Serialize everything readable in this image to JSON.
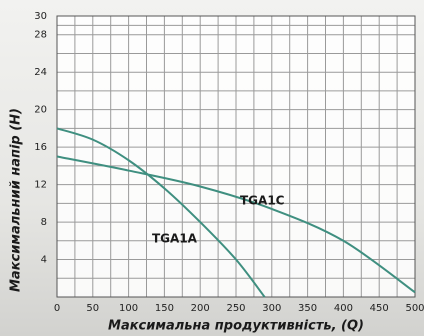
{
  "chart_data": {
    "type": "line",
    "x_label": "Максимальна продуктивність, (Q)",
    "y_label": "Максимальний напір (Н)",
    "xlim": [
      0,
      500
    ],
    "ylim": [
      0,
      30
    ],
    "xticks": [
      0,
      50,
      100,
      150,
      200,
      250,
      300,
      350,
      400,
      450,
      500
    ],
    "yticks": [
      4,
      8,
      12,
      16,
      20,
      24,
      28,
      30
    ],
    "grid": true,
    "series": [
      {
        "name": "TGA1A",
        "color": "#3f8f80",
        "x": [
          0,
          50,
          100,
          150,
          200,
          250,
          290
        ],
        "values": [
          18,
          16.8,
          14.6,
          11.6,
          8,
          4,
          0
        ]
      },
      {
        "name": "TGA1C",
        "color": "#3f8f80",
        "x": [
          0,
          100,
          200,
          300,
          400,
          500
        ],
        "values": [
          15,
          13.5,
          11.8,
          9.4,
          6,
          0.5
        ]
      }
    ]
  }
}
